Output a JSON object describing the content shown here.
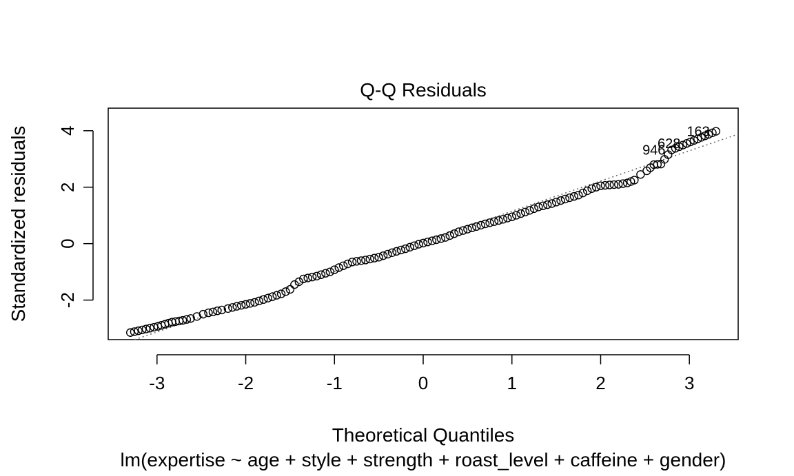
{
  "chart_data": {
    "type": "scatter",
    "title": "Q-Q Residuals",
    "xlabel": "Theoretical Quantiles",
    "ylabel": "Standardized residuals",
    "subtitle": "lm(expertise ~ age + style + strength + roast_level + caffeine + gender)",
    "xlim": [
      -3.55,
      3.55
    ],
    "ylim": [
      -3.4,
      4.8
    ],
    "xticks": [
      "-3",
      "-2",
      "-1",
      "0",
      "1",
      "2",
      "3"
    ],
    "yticks": [
      "-2",
      "0",
      "2",
      "4"
    ],
    "reference_line": {
      "slope": 1.07,
      "intercept": 0.08,
      "style": "dotted",
      "color": "#666666"
    },
    "points": [
      [
        -3.3,
        -3.15
      ],
      [
        -2.99,
        -2.93
      ],
      [
        -2.83,
        -2.78
      ],
      [
        -2.71,
        -2.72
      ],
      [
        -2.62,
        -2.65
      ],
      [
        -2.55,
        -2.58
      ],
      [
        -2.48,
        -2.5
      ],
      [
        -2.42,
        -2.45
      ],
      [
        -2.37,
        -2.42
      ],
      [
        -2.32,
        -2.38
      ],
      [
        -2.27,
        -2.35
      ],
      [
        -2.2,
        -2.3
      ],
      [
        -2.1,
        -2.22
      ],
      [
        -2.0,
        -2.15
      ],
      [
        -1.9,
        -2.08
      ],
      [
        -1.8,
        -1.98
      ],
      [
        -1.7,
        -1.88
      ],
      [
        -1.6,
        -1.78
      ],
      [
        -1.5,
        -1.62
      ],
      [
        -1.45,
        -1.45
      ],
      [
        -1.35,
        -1.25
      ],
      [
        -1.2,
        -1.15
      ],
      [
        -1.05,
        -1.0
      ],
      [
        -0.95,
        -0.85
      ],
      [
        -0.8,
        -0.65
      ],
      [
        -0.65,
        -0.58
      ],
      [
        -0.5,
        -0.48
      ],
      [
        -0.35,
        -0.32
      ],
      [
        -0.2,
        -0.18
      ],
      [
        -0.05,
        -0.02
      ],
      [
        0.1,
        0.1
      ],
      [
        0.25,
        0.22
      ],
      [
        0.4,
        0.42
      ],
      [
        0.55,
        0.56
      ],
      [
        0.7,
        0.7
      ],
      [
        0.85,
        0.82
      ],
      [
        1.0,
        0.95
      ],
      [
        1.15,
        1.12
      ],
      [
        1.3,
        1.3
      ],
      [
        1.45,
        1.42
      ],
      [
        1.6,
        1.58
      ],
      [
        1.75,
        1.72
      ],
      [
        1.9,
        1.95
      ],
      [
        2.0,
        2.05
      ],
      [
        2.1,
        2.08
      ],
      [
        2.2,
        2.1
      ],
      [
        2.3,
        2.15
      ],
      [
        2.38,
        2.25
      ],
      [
        2.45,
        2.45
      ],
      [
        2.52,
        2.58
      ],
      [
        2.6,
        2.8
      ],
      [
        2.68,
        2.82
      ],
      [
        2.8,
        3.32
      ],
      [
        2.97,
        3.55
      ],
      [
        3.3,
        3.98
      ]
    ],
    "labeled_points": [
      {
        "label": "163",
        "x": 3.3,
        "y": 3.98
      },
      {
        "label": "628",
        "x": 2.97,
        "y": 3.55
      },
      {
        "label": "946",
        "x": 2.8,
        "y": 3.32
      }
    ]
  }
}
